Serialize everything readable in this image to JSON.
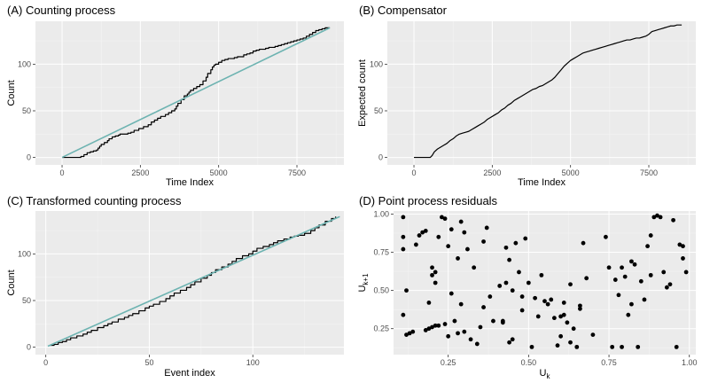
{
  "chart_data": [
    {
      "id": "A",
      "type": "line",
      "title": "(A) Counting process",
      "xlabel": "Time Index",
      "ylabel": "Count",
      "xlim": [
        -850,
        9000
      ],
      "ylim": [
        -8,
        146
      ],
      "xticks": [
        0,
        2500,
        5000,
        7500
      ],
      "xtick_labels": [
        "0",
        "2500",
        "5000",
        "7500"
      ],
      "yticks": [
        0,
        50,
        100
      ],
      "ytick_labels": [
        "0",
        "50",
        "100"
      ],
      "grid": true,
      "series": [
        {
          "style": "step",
          "color": "#000000",
          "x": [
            0,
            520,
            600,
            700,
            800,
            900,
            1000,
            1100,
            1150,
            1200,
            1250,
            1350,
            1450,
            1500,
            1600,
            1700,
            1800,
            1850,
            2000,
            2100,
            2200,
            2300,
            2450,
            2600,
            2750,
            2850,
            2950,
            3050,
            3150,
            3300,
            3400,
            3500,
            3600,
            3650,
            3700,
            3800,
            3900,
            4000,
            4050,
            4100,
            4200,
            4300,
            4400,
            4500,
            4600,
            4650,
            4750,
            4800,
            4850,
            4900,
            5000,
            5100,
            5200,
            5300,
            5400,
            5500,
            5600,
            5700,
            5800,
            5900,
            6000,
            6100,
            6200,
            6300,
            6400,
            6500,
            6600,
            6700,
            6800,
            6900,
            7000,
            7100,
            7200,
            7300,
            7400,
            7500,
            7600,
            7700,
            7800,
            7900,
            8000,
            8100,
            8200,
            8300,
            8400,
            8550
          ],
          "y": [
            0,
            0,
            1,
            3,
            5,
            6,
            7,
            8,
            10,
            12,
            14,
            16,
            18,
            20,
            22,
            23,
            24,
            25,
            25,
            26,
            27,
            29,
            31,
            33,
            35,
            38,
            40,
            42,
            44,
            46,
            48,
            50,
            52,
            55,
            58,
            62,
            66,
            68,
            70,
            72,
            74,
            76,
            78,
            82,
            86,
            90,
            94,
            97,
            99,
            100,
            102,
            104,
            105,
            106,
            106,
            107,
            108,
            108,
            110,
            111,
            112,
            114,
            115,
            116,
            116,
            117,
            118,
            118,
            119,
            120,
            121,
            122,
            123,
            124,
            125,
            126,
            127,
            128,
            130,
            132,
            134,
            136,
            137,
            138,
            139,
            139
          ]
        },
        {
          "style": "line",
          "color": "#6db3b1",
          "x": [
            0,
            8550
          ],
          "y": [
            0,
            139
          ]
        }
      ]
    },
    {
      "id": "B",
      "type": "line",
      "title": "(B) Compensator",
      "xlabel": "Time Index",
      "ylabel": "Expected count",
      "xlim": [
        -850,
        9000
      ],
      "ylim": [
        -8,
        146
      ],
      "xticks": [
        0,
        2500,
        5000,
        7500
      ],
      "xtick_labels": [
        "0",
        "2500",
        "5000",
        "7500"
      ],
      "yticks": [
        0,
        50,
        100
      ],
      "ytick_labels": [
        "0",
        "50",
        "100"
      ],
      "grid": true,
      "series": [
        {
          "style": "line",
          "color": "#000000",
          "x": [
            0,
            520,
            580,
            650,
            750,
            850,
            950,
            1050,
            1150,
            1250,
            1350,
            1450,
            1550,
            1650,
            1750,
            1850,
            1950,
            2050,
            2150,
            2250,
            2350,
            2450,
            2600,
            2700,
            2800,
            2900,
            3000,
            3100,
            3200,
            3300,
            3400,
            3500,
            3600,
            3700,
            3800,
            3900,
            4000,
            4100,
            4200,
            4300,
            4400,
            4500,
            4600,
            4700,
            4800,
            4900,
            5000,
            5100,
            5200,
            5300,
            5400,
            5500,
            5600,
            5700,
            5800,
            5900,
            6000,
            6100,
            6200,
            6300,
            6400,
            6500,
            6600,
            6700,
            6800,
            6900,
            7000,
            7100,
            7200,
            7300,
            7400,
            7500,
            7600,
            7700,
            7800,
            7900,
            8000,
            8100,
            8200,
            8300,
            8400,
            8550
          ],
          "y": [
            0,
            0,
            2,
            6,
            9,
            11,
            13,
            15,
            18,
            20,
            23,
            25,
            26,
            27,
            28,
            30,
            32,
            34,
            36,
            38,
            41,
            43,
            46,
            48,
            51,
            53,
            56,
            58,
            61,
            63,
            65,
            67,
            69,
            71,
            73,
            74,
            76,
            77,
            79,
            81,
            83,
            86,
            90,
            94,
            98,
            101,
            104,
            106,
            108,
            110,
            112,
            113,
            114,
            115,
            116,
            117,
            118,
            119,
            120,
            121,
            122,
            123,
            124,
            125,
            126,
            126,
            127,
            128,
            128,
            129,
            130,
            132,
            135,
            136,
            137,
            138,
            139,
            140,
            141,
            141,
            142,
            142
          ]
        }
      ]
    },
    {
      "id": "C",
      "type": "line",
      "title": "(C) Transformed counting process",
      "xlabel": "Event index",
      "ylabel": "Count",
      "xlim": [
        -5,
        144
      ],
      "ylim": [
        -8,
        146
      ],
      "xticks": [
        0,
        50,
        100
      ],
      "xtick_labels": [
        "0",
        "50",
        "100"
      ],
      "yticks": [
        0,
        50,
        100
      ],
      "ytick_labels": [
        "0",
        "50",
        "100"
      ],
      "grid": true,
      "series": [
        {
          "style": "step",
          "color": "#000000",
          "x": [
            2,
            4,
            6,
            8,
            10,
            12,
            15,
            18,
            20,
            22,
            25,
            28,
            30,
            32,
            35,
            38,
            40,
            42,
            45,
            48,
            50,
            52,
            55,
            58,
            60,
            62,
            65,
            68,
            70,
            72,
            75,
            78,
            80,
            82,
            85,
            88,
            90,
            92,
            95,
            98,
            100,
            102,
            105,
            108,
            110,
            112,
            115,
            118,
            120,
            122,
            125,
            128,
            130,
            132,
            135,
            138,
            140
          ],
          "y": [
            2,
            3,
            5,
            6,
            8,
            10,
            12,
            14,
            16,
            18,
            21,
            23,
            25,
            27,
            30,
            32,
            34,
            36,
            39,
            42,
            44,
            46,
            49,
            52,
            55,
            58,
            61,
            64,
            67,
            70,
            74,
            77,
            80,
            83,
            86,
            89,
            92,
            95,
            98,
            100,
            103,
            106,
            108,
            110,
            112,
            114,
            116,
            118,
            119,
            120,
            122,
            125,
            128,
            131,
            135,
            138,
            140
          ]
        },
        {
          "style": "line",
          "color": "#6db3b1",
          "x": [
            1,
            142
          ],
          "y": [
            1,
            140
          ]
        }
      ]
    },
    {
      "id": "D",
      "type": "scatter",
      "title": "(D) Point process residuals",
      "xlabel": "U",
      "xlabel_sub": "k",
      "ylabel": "U",
      "ylabel_sub": "k+1",
      "xlim": [
        0.08,
        1.02
      ],
      "ylim": [
        0.08,
        1.02
      ],
      "xticks": [
        0.25,
        0.5,
        0.75,
        1.0
      ],
      "xtick_labels": [
        "0.25",
        "0.50",
        "0.75",
        "1.00"
      ],
      "yticks": [
        0.25,
        0.5,
        0.75,
        1.0
      ],
      "ytick_labels": [
        "0.25",
        "0.50",
        "0.75",
        "1.00"
      ],
      "grid": true,
      "series": [
        {
          "style": "points",
          "color": "#000000",
          "x": [
            0.11,
            0.11,
            0.11,
            0.11,
            0.12,
            0.12,
            0.13,
            0.14,
            0.15,
            0.16,
            0.17,
            0.18,
            0.18,
            0.19,
            0.19,
            0.2,
            0.2,
            0.2,
            0.21,
            0.21,
            0.21,
            0.22,
            0.22,
            0.23,
            0.24,
            0.24,
            0.25,
            0.25,
            0.26,
            0.26,
            0.27,
            0.28,
            0.28,
            0.29,
            0.29,
            0.3,
            0.3,
            0.31,
            0.32,
            0.33,
            0.34,
            0.35,
            0.36,
            0.36,
            0.37,
            0.38,
            0.39,
            0.41,
            0.42,
            0.42,
            0.43,
            0.43,
            0.44,
            0.44,
            0.45,
            0.45,
            0.46,
            0.47,
            0.48,
            0.48,
            0.49,
            0.5,
            0.51,
            0.52,
            0.53,
            0.54,
            0.55,
            0.56,
            0.57,
            0.58,
            0.59,
            0.6,
            0.6,
            0.61,
            0.61,
            0.62,
            0.63,
            0.63,
            0.64,
            0.65,
            0.66,
            0.66,
            0.67,
            0.68,
            0.7,
            0.74,
            0.75,
            0.76,
            0.77,
            0.78,
            0.79,
            0.79,
            0.8,
            0.81,
            0.82,
            0.82,
            0.83,
            0.84,
            0.85,
            0.86,
            0.87,
            0.88,
            0.88,
            0.89,
            0.9,
            0.91,
            0.92,
            0.93,
            0.94,
            0.95,
            0.96,
            0.97,
            0.98,
            0.98,
            0.99
          ],
          "y": [
            0.98,
            0.85,
            0.77,
            0.34,
            0.5,
            0.21,
            0.22,
            0.23,
            0.8,
            0.86,
            0.88,
            0.89,
            0.24,
            0.25,
            0.42,
            0.6,
            0.65,
            0.26,
            0.62,
            0.55,
            0.27,
            0.85,
            0.27,
            0.98,
            0.28,
            0.97,
            0.79,
            0.2,
            0.9,
            0.48,
            0.3,
            0.71,
            0.22,
            0.95,
            0.41,
            0.23,
            0.88,
            0.77,
            0.18,
            0.65,
            0.15,
            0.26,
            0.82,
            0.39,
            0.91,
            0.46,
            0.3,
            0.53,
            0.3,
            0.29,
            0.78,
            0.55,
            0.16,
            0.7,
            0.18,
            0.5,
            0.81,
            0.62,
            0.37,
            0.46,
            0.84,
            0.55,
            0.13,
            0.45,
            0.33,
            0.6,
            0.43,
            0.41,
            0.44,
            0.32,
            0.14,
            0.2,
            0.33,
            0.42,
            0.34,
            0.29,
            0.16,
            0.54,
            0.25,
            0.13,
            0.4,
            0.38,
            0.81,
            0.58,
            0.21,
            0.85,
            0.65,
            0.13,
            0.57,
            0.47,
            0.13,
            0.65,
            0.59,
            0.34,
            0.41,
            0.69,
            0.67,
            0.13,
            0.56,
            0.44,
            0.79,
            0.86,
            0.6,
            0.98,
            0.99,
            0.98,
            0.62,
            0.52,
            0.54,
            0.96,
            0.13,
            0.8,
            0.79,
            0.71,
            0.62
          ]
        }
      ]
    }
  ]
}
